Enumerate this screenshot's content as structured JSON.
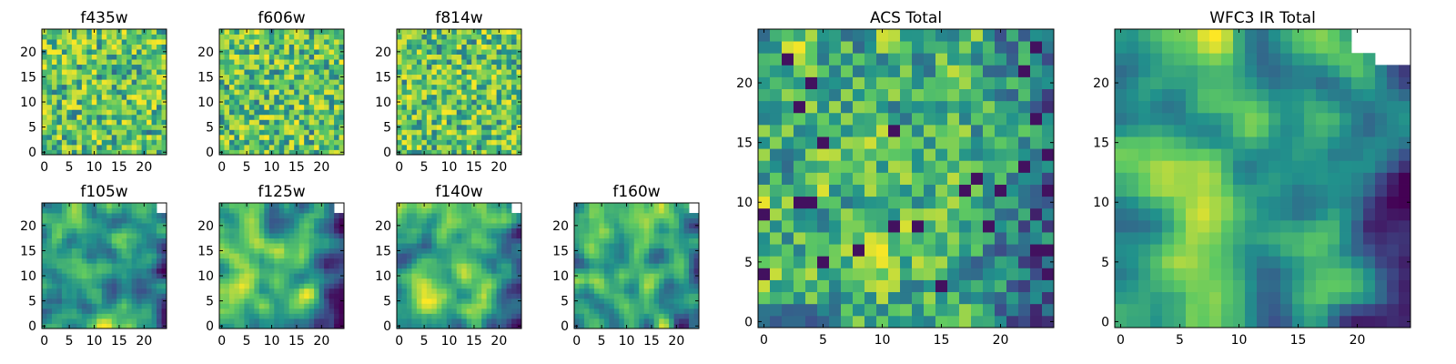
{
  "figure": {
    "background": "#ffffff",
    "colormap": "viridis",
    "cmap_colors": [
      "#440154",
      "#3b528b",
      "#21918c",
      "#5ec962",
      "#fde725"
    ]
  },
  "chart_data": [
    {
      "type": "heatmap",
      "title": "f435w",
      "xlim": [
        0,
        25
      ],
      "ylim": [
        0,
        25
      ],
      "xticks": [
        0,
        5,
        10,
        15,
        20
      ],
      "yticks": [
        0,
        5,
        10,
        15,
        20
      ],
      "grid_size": [
        25,
        25
      ],
      "pattern": "noise",
      "seed": 11,
      "masked_corner": false,
      "value_range": [
        0,
        1
      ]
    },
    {
      "type": "heatmap",
      "title": "f606w",
      "xlim": [
        0,
        25
      ],
      "ylim": [
        0,
        25
      ],
      "xticks": [
        0,
        5,
        10,
        15,
        20
      ],
      "yticks": [
        0,
        5,
        10,
        15,
        20
      ],
      "grid_size": [
        25,
        25
      ],
      "pattern": "noise",
      "seed": 23,
      "masked_corner": false,
      "value_range": [
        0,
        1
      ]
    },
    {
      "type": "heatmap",
      "title": "f814w",
      "xlim": [
        0,
        25
      ],
      "ylim": [
        0,
        25
      ],
      "xticks": [
        0,
        5,
        10,
        15,
        20
      ],
      "yticks": [
        0,
        5,
        10,
        15,
        20
      ],
      "grid_size": [
        25,
        25
      ],
      "pattern": "noise",
      "seed": 37,
      "masked_corner": false,
      "value_range": [
        0,
        1
      ]
    },
    {
      "type": "heatmap",
      "title": "f105w",
      "xlim": [
        0,
        25
      ],
      "ylim": [
        0,
        25
      ],
      "xticks": [
        0,
        5,
        10,
        15,
        20
      ],
      "yticks": [
        0,
        5,
        10,
        15,
        20
      ],
      "grid_size": [
        25,
        25
      ],
      "pattern": "smooth",
      "seed": 41,
      "masked_corner": true,
      "value_range": [
        0,
        1
      ]
    },
    {
      "type": "heatmap",
      "title": "f125w",
      "xlim": [
        0,
        25
      ],
      "ylim": [
        0,
        25
      ],
      "xticks": [
        0,
        5,
        10,
        15,
        20
      ],
      "yticks": [
        0,
        5,
        10,
        15,
        20
      ],
      "grid_size": [
        25,
        25
      ],
      "pattern": "smooth",
      "seed": 53,
      "masked_corner": true,
      "value_range": [
        0,
        1
      ]
    },
    {
      "type": "heatmap",
      "title": "f140w",
      "xlim": [
        0,
        25
      ],
      "ylim": [
        0,
        25
      ],
      "xticks": [
        0,
        5,
        10,
        15,
        20
      ],
      "yticks": [
        0,
        5,
        10,
        15,
        20
      ],
      "grid_size": [
        25,
        25
      ],
      "pattern": "smooth",
      "seed": 67,
      "masked_corner": true,
      "value_range": [
        0,
        1
      ]
    },
    {
      "type": "heatmap",
      "title": "f160w",
      "xlim": [
        0,
        25
      ],
      "ylim": [
        0,
        25
      ],
      "xticks": [
        0,
        5,
        10,
        15,
        20
      ],
      "yticks": [
        0,
        5,
        10,
        15,
        20
      ],
      "grid_size": [
        25,
        25
      ],
      "pattern": "smooth",
      "seed": 79,
      "masked_corner": true,
      "value_range": [
        0,
        1
      ]
    },
    {
      "type": "heatmap",
      "title": "ACS Total",
      "xlim": [
        0,
        25
      ],
      "ylim": [
        0,
        25
      ],
      "xticks": [
        0,
        5,
        10,
        15,
        20
      ],
      "yticks": [
        0,
        5,
        10,
        15,
        20
      ],
      "grid_size": [
        25,
        25
      ],
      "pattern": "acs",
      "seed": 97,
      "masked_corner": false,
      "value_range": [
        0,
        1
      ]
    },
    {
      "type": "heatmap",
      "title": "WFC3 IR Total",
      "xlim": [
        0,
        25
      ],
      "ylim": [
        0,
        25
      ],
      "xticks": [
        0,
        5,
        10,
        15,
        20
      ],
      "yticks": [
        0,
        5,
        10,
        15,
        20
      ],
      "grid_size": [
        25,
        25
      ],
      "pattern": "ir",
      "seed": 101,
      "masked_corner": true,
      "value_range": [
        0,
        1
      ]
    }
  ]
}
